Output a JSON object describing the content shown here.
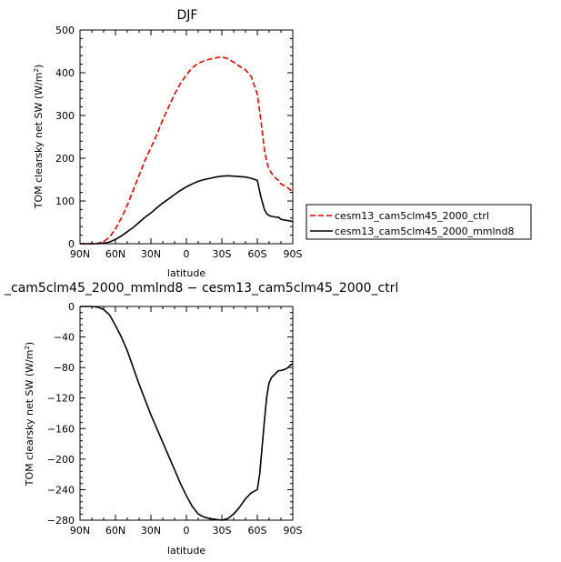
{
  "chart_data": [
    {
      "type": "line",
      "title": "DJF",
      "xlabel": "latitude",
      "ylabel": "TOM clearsky net SW (W/m",
      "ylabel_sup": "2",
      "ylabel_end": ")",
      "xlim": [
        90,
        -90
      ],
      "ylim": [
        0,
        500
      ],
      "xticks": [
        90,
        60,
        30,
        0,
        -30,
        -60,
        -90
      ],
      "xtick_labels": [
        "90N",
        "60N",
        "30N",
        "0",
        "30S",
        "60S",
        "90S"
      ],
      "yticks": [
        0,
        100,
        200,
        300,
        400,
        500
      ],
      "ytick_labels": [
        "0",
        "100",
        "200",
        "300",
        "400",
        "500"
      ],
      "legend_position": "right",
      "series": [
        {
          "name": "cesm13_cam5clm45_2000_ctrl",
          "color": "#e00000",
          "dash": "dashed",
          "x": [
            90,
            85,
            80,
            75,
            70,
            65,
            60,
            55,
            50,
            45,
            40,
            35,
            30,
            25,
            20,
            15,
            10,
            5,
            0,
            -5,
            -10,
            -15,
            -20,
            -25,
            -30,
            -35,
            -40,
            -45,
            -50,
            -55,
            -60,
            -63,
            -66,
            -68,
            -70,
            -72,
            -74,
            -76,
            -78,
            -80,
            -82,
            -84,
            -86,
            -88,
            -90
          ],
          "y": [
            0,
            0,
            0,
            1,
            5,
            15,
            35,
            60,
            90,
            125,
            160,
            195,
            225,
            255,
            290,
            320,
            350,
            375,
            395,
            412,
            422,
            428,
            432,
            435,
            437,
            433,
            425,
            415,
            407,
            390,
            350,
            290,
            220,
            190,
            175,
            165,
            158,
            152,
            148,
            140,
            137,
            134,
            130,
            126,
            122
          ]
        },
        {
          "name": "cesm13_cam5clm45_2000_mmlnd8",
          "color": "#000000",
          "dash": "solid",
          "x": [
            90,
            85,
            80,
            75,
            70,
            65,
            60,
            55,
            50,
            45,
            40,
            35,
            30,
            25,
            20,
            15,
            10,
            5,
            0,
            -5,
            -10,
            -15,
            -20,
            -25,
            -30,
            -35,
            -40,
            -45,
            -50,
            -55,
            -60,
            -63,
            -66,
            -68,
            -70,
            -72,
            -74,
            -76,
            -78,
            -80,
            -82,
            -84,
            -86,
            -88,
            -90
          ],
          "y": [
            0,
            0,
            0,
            0,
            1,
            4,
            10,
            18,
            28,
            38,
            50,
            62,
            72,
            84,
            95,
            105,
            115,
            125,
            133,
            140,
            146,
            150,
            153,
            156,
            158,
            159,
            158,
            157,
            156,
            153,
            148,
            110,
            80,
            70,
            66,
            64,
            63,
            62,
            62,
            57,
            56,
            55,
            54,
            53,
            52
          ]
        }
      ]
    },
    {
      "type": "line",
      "title": "_cam5clm45_2000_mmlnd8 − cesm13_cam5clm45_2000_ctrl",
      "xlabel": "latitude",
      "ylabel": "TOM clearsky net SW (W/m",
      "ylabel_sup": "2",
      "ylabel_end": ")",
      "xlim": [
        90,
        -90
      ],
      "ylim": [
        -280,
        0
      ],
      "xticks": [
        90,
        60,
        30,
        0,
        -30,
        -60,
        -90
      ],
      "xtick_labels": [
        "90N",
        "60N",
        "30N",
        "0",
        "30S",
        "60S",
        "90S"
      ],
      "yticks": [
        0,
        -40,
        -80,
        -120,
        -160,
        -200,
        -240,
        -280
      ],
      "ytick_labels": [
        "0",
        "−40",
        "−80",
        "−120",
        "−160",
        "−200",
        "−240",
        "−280"
      ],
      "series": [
        {
          "name": "",
          "color": "#000000",
          "dash": "solid",
          "x": [
            90,
            85,
            80,
            75,
            70,
            65,
            60,
            55,
            50,
            45,
            40,
            35,
            30,
            25,
            20,
            15,
            10,
            5,
            0,
            -5,
            -10,
            -15,
            -20,
            -25,
            -30,
            -35,
            -40,
            -45,
            -50,
            -55,
            -60,
            -62,
            -64,
            -66,
            -68,
            -70,
            -72,
            -74,
            -76,
            -78,
            -80,
            -82,
            -84,
            -86,
            -88,
            -90
          ],
          "y": [
            0,
            0,
            0,
            -1,
            -4,
            -11,
            -25,
            -40,
            -58,
            -80,
            -102,
            -122,
            -142,
            -160,
            -178,
            -196,
            -214,
            -232,
            -248,
            -262,
            -272,
            -276,
            -278,
            -279,
            -280,
            -278,
            -272,
            -263,
            -252,
            -244,
            -240,
            -220,
            -185,
            -150,
            -118,
            -100,
            -93,
            -90,
            -87,
            -84,
            -84,
            -83,
            -82,
            -80,
            -77,
            -75
          ]
        }
      ]
    }
  ]
}
